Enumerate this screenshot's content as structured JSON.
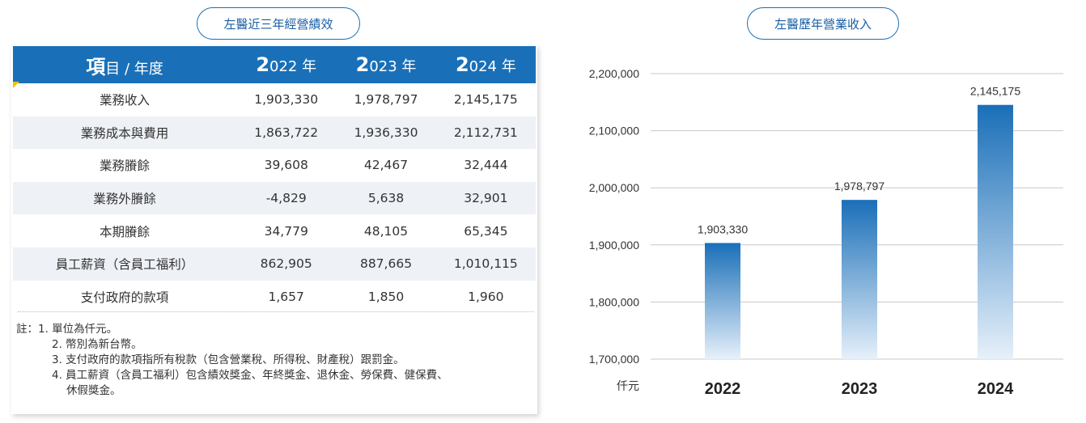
{
  "left_title": "左醫近三年經營績效",
  "right_title": "左醫歷年營業收入",
  "table": {
    "header": {
      "label_big": "項",
      "label_rest": "目 / 年度",
      "years": [
        {
          "big": "2",
          "rest": "022 年"
        },
        {
          "big": "2",
          "rest": "023 年"
        },
        {
          "big": "2",
          "rest": "024 年"
        }
      ]
    },
    "rows": [
      {
        "label": "業務收入",
        "values": [
          "1,903,330",
          "1,978,797",
          "2,145,175"
        ]
      },
      {
        "label": "業務成本與費用",
        "values": [
          "1,863,722",
          "1,936,330",
          "2,112,731"
        ]
      },
      {
        "label": "業務賸餘",
        "values": [
          "39,608",
          "42,467",
          "32,444"
        ]
      },
      {
        "label": "業務外賸餘",
        "values": [
          "-4,829",
          "5,638",
          "32,901"
        ]
      },
      {
        "label": "本期賸餘",
        "values": [
          "34,779",
          "48,105",
          "65,345"
        ]
      },
      {
        "label": "員工薪資（含員工福利）",
        "values": [
          "862,905",
          "887,665",
          "1,010,115"
        ]
      },
      {
        "label": "支付政府的款項",
        "values": [
          "1,657",
          "1,850",
          "1,960"
        ]
      }
    ]
  },
  "notes": {
    "prefix": "註：",
    "items": [
      "1. 單位為仟元。",
      "2. 幣別為新台幣。",
      "3. 支付政府的款項指所有稅款（包含營業稅、所得稅、財產稅）跟罰金。",
      "4. 員工薪資（含員工福利）包含績效獎金、年終獎金、退休金、勞保費、健保費、",
      "休假獎金。"
    ]
  },
  "chart_data": {
    "type": "bar",
    "title": "左醫歷年營業收入",
    "categories": [
      "2022",
      "2023",
      "2024"
    ],
    "values": [
      1903330,
      1978797,
      2145175
    ],
    "data_labels": [
      "1,903,330",
      "1,978,797",
      "2,145,175"
    ],
    "ylabel": "仟元",
    "ylim": [
      1700000,
      2200000
    ],
    "yticks": [
      1700000,
      1800000,
      1900000,
      2000000,
      2100000,
      2200000
    ],
    "ytick_labels": [
      "1,700,000",
      "1,800,000",
      "1,900,000",
      "2,000,000",
      "2,100,000",
      "2,200,000"
    ],
    "grid": true,
    "bar_color_top": "#1a6fb8",
    "bar_color_bottom": "#e6f0fa"
  }
}
